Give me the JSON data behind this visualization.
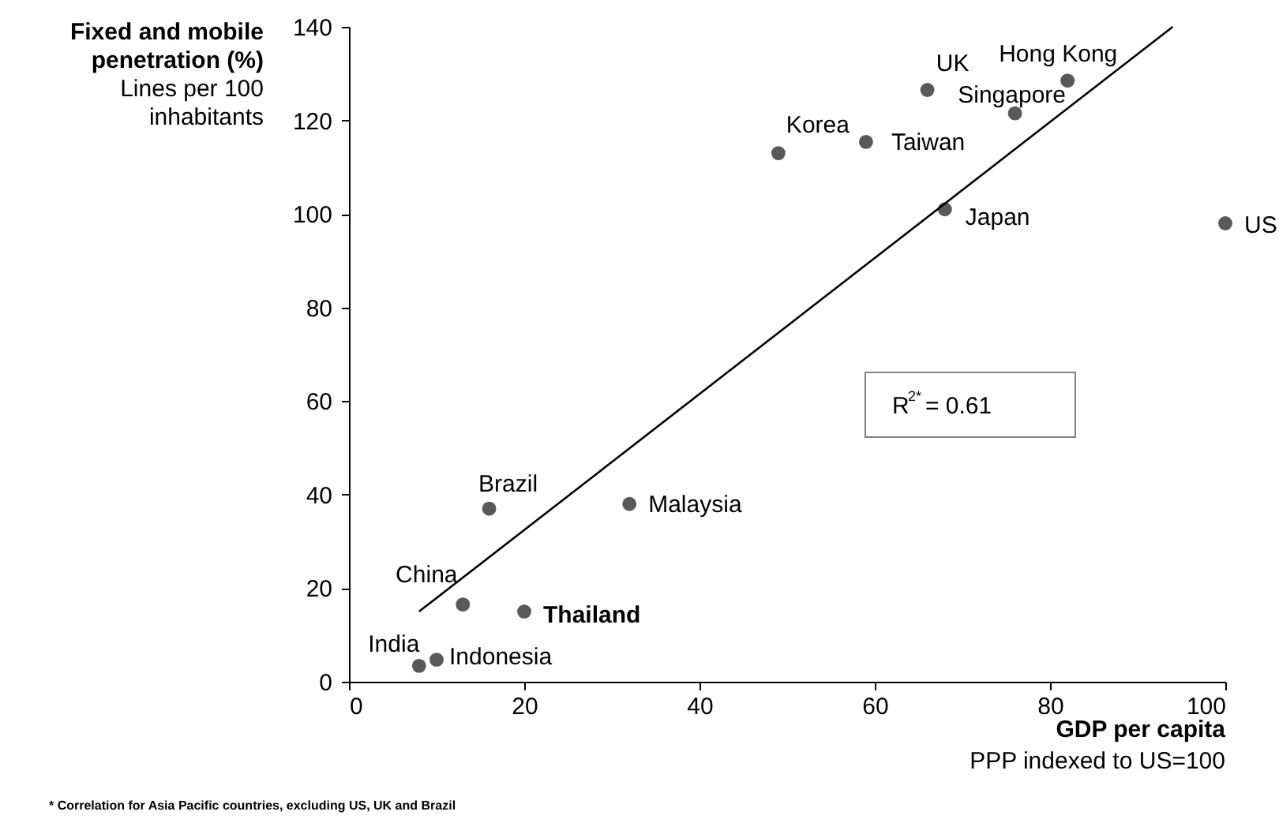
{
  "chart_data": {
    "type": "scatter",
    "xlabel": "GDP per capita",
    "ylabel": "Fixed and mobile\npenetration (%)",
    "xlim": [
      0,
      100
    ],
    "xticks": [
      0,
      20,
      40,
      60,
      80,
      100
    ],
    "ylim": [
      0,
      140
    ],
    "yticks": [
      0,
      20,
      40,
      60,
      80,
      100,
      120,
      140
    ],
    "grid": false,
    "series": [
      {
        "marker": "circle",
        "color": "#595959",
        "x": [
          16,
          32,
          13,
          20,
          8,
          10,
          49,
          59,
          66,
          82,
          76,
          68,
          100
        ],
        "values": [
          37,
          38,
          16.5,
          15,
          3.4,
          4.7,
          113,
          115.4,
          126.5,
          128.5,
          121.5,
          101,
          98
        ]
      },
      {
        "type": "line",
        "color": "#000000",
        "line_style": "solid",
        "x": [
          8,
          94
        ],
        "values": [
          15,
          140
        ]
      }
    ],
    "annotations": [
      {
        "text": "Brazil",
        "x": 16,
        "y": 37
      },
      {
        "text": "Malaysia",
        "x": 32,
        "y": 38
      },
      {
        "text": "China",
        "x": 13,
        "y": 16.5
      },
      {
        "text": "Thailand",
        "x": 20,
        "y": 15
      },
      {
        "text": "India",
        "x": 8,
        "y": 3.4
      },
      {
        "text": "Indonesia",
        "x": 10,
        "y": 4.7
      },
      {
        "text": "Korea",
        "x": 49,
        "y": 113
      },
      {
        "text": "Taiwan",
        "x": 59,
        "y": 115.4
      },
      {
        "text": "UK",
        "x": 66,
        "y": 126.5
      },
      {
        "text": "Hong Kong",
        "x": 82,
        "y": 128.5
      },
      {
        "text": "Singapore",
        "x": 76,
        "y": 121.5
      },
      {
        "text": "Japan",
        "x": 68,
        "y": 101
      },
      {
        "text": "US",
        "x": 100,
        "y": 98
      },
      "Lines per 100\ninhabitants",
      "PPP indexed to US=100",
      "R$^{2*}$ = 0.61",
      "* Correlation for Asia Pacific countries, excluding US, UK and Brazil"
    ]
  }
}
